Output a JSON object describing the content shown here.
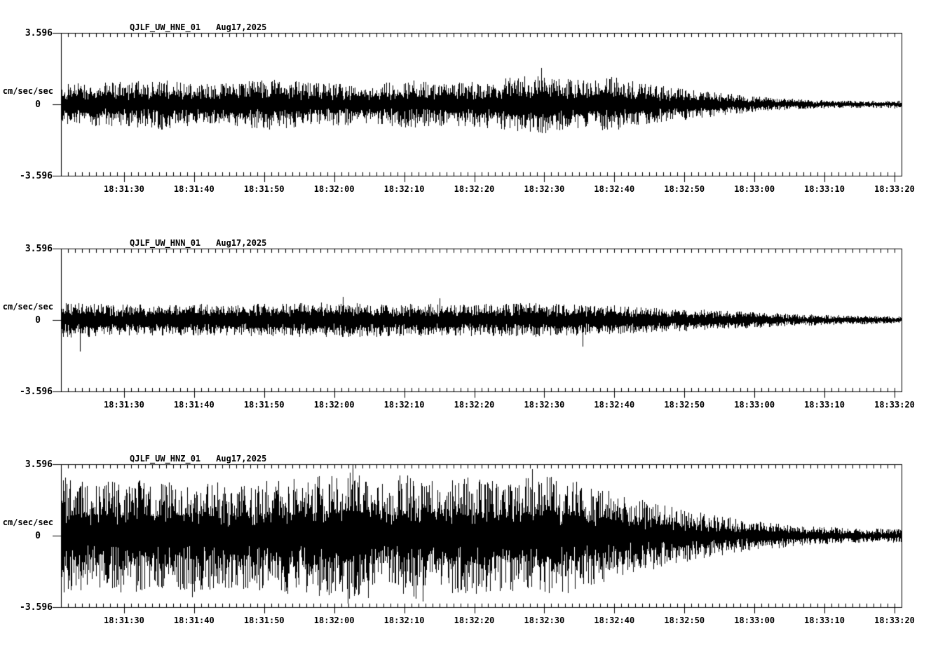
{
  "page": {
    "background": "#ffffff",
    "ink": "#000000"
  },
  "chart_data": [
    {
      "type": "line",
      "subtype": "seismogram",
      "station_label": "QJLF_UW_HNE_01",
      "date_label": "Aug17,2025",
      "ylabel": "cm/sec/sec",
      "y_tick_labels": {
        "top": "3.596",
        "zero": "0",
        "bottom": "-3.596"
      },
      "ylim": [
        -3.596,
        3.596
      ],
      "x_tick_labels": [
        "18:31:30",
        "18:31:40",
        "18:31:50",
        "18:32:00",
        "18:32:10",
        "18:32:20",
        "18:32:30",
        "18:32:40",
        "18:32:50",
        "18:33:00",
        "18:33:10",
        "18:33:20"
      ],
      "x_span_seconds": 120,
      "x_first_tick_offset_seconds": 9,
      "x_tick_interval_seconds": 10,
      "x_minor_tick_interval_seconds": 1,
      "grid": false,
      "legend": false,
      "seed": 101,
      "core_fraction": 0.38,
      "spike_probability": 0.85,
      "envelope": [
        [
          0,
          1.05
        ],
        [
          0.08,
          1.15
        ],
        [
          0.12,
          1.3
        ],
        [
          0.18,
          1.0
        ],
        [
          0.25,
          1.3
        ],
        [
          0.3,
          1.1
        ],
        [
          0.36,
          1.05
        ],
        [
          0.42,
          1.2
        ],
        [
          0.47,
          1.1
        ],
        [
          0.52,
          1.3
        ],
        [
          0.56,
          1.45
        ],
        [
          0.575,
          1.6
        ],
        [
          0.6,
          1.3
        ],
        [
          0.63,
          1.2
        ],
        [
          0.655,
          1.4
        ],
        [
          0.69,
          1.05
        ],
        [
          0.72,
          0.9
        ],
        [
          0.75,
          0.75
        ],
        [
          0.8,
          0.5
        ],
        [
          0.85,
          0.32
        ],
        [
          0.9,
          0.22
        ],
        [
          0.95,
          0.18
        ],
        [
          1,
          0.2
        ]
      ],
      "spikes": [
        [
          0.571,
          1.85
        ],
        [
          0.576,
          -1.45
        ]
      ]
    },
    {
      "type": "line",
      "subtype": "seismogram",
      "station_label": "QJLF_UW_HNN_01",
      "date_label": "Aug17,2025",
      "ylabel": "cm/sec/sec",
      "y_tick_labels": {
        "top": "3.596",
        "zero": "0",
        "bottom": "-3.596"
      },
      "ylim": [
        -3.596,
        3.596
      ],
      "x_tick_labels": [
        "18:31:30",
        "18:31:40",
        "18:31:50",
        "18:32:00",
        "18:32:10",
        "18:32:20",
        "18:32:30",
        "18:32:40",
        "18:32:50",
        "18:33:00",
        "18:33:10",
        "18:33:20"
      ],
      "x_span_seconds": 120,
      "x_first_tick_offset_seconds": 9,
      "x_tick_interval_seconds": 10,
      "x_minor_tick_interval_seconds": 1,
      "grid": false,
      "legend": false,
      "seed": 202,
      "core_fraction": 0.42,
      "spike_probability": 0.85,
      "envelope": [
        [
          0,
          0.9
        ],
        [
          0.05,
          0.82
        ],
        [
          0.1,
          0.78
        ],
        [
          0.2,
          0.82
        ],
        [
          0.3,
          0.88
        ],
        [
          0.4,
          0.82
        ],
        [
          0.5,
          0.8
        ],
        [
          0.55,
          0.85
        ],
        [
          0.6,
          0.8
        ],
        [
          0.65,
          0.75
        ],
        [
          0.7,
          0.65
        ],
        [
          0.75,
          0.55
        ],
        [
          0.8,
          0.45
        ],
        [
          0.85,
          0.35
        ],
        [
          0.9,
          0.28
        ],
        [
          0.95,
          0.22
        ],
        [
          1,
          0.18
        ]
      ],
      "spikes": [
        [
          0.022,
          -1.6
        ],
        [
          0.335,
          1.15
        ],
        [
          0.45,
          1.1
        ],
        [
          0.62,
          -1.35
        ]
      ]
    },
    {
      "type": "line",
      "subtype": "seismogram",
      "station_label": "QJLF_UW_HNZ_01",
      "date_label": "Aug17,2025",
      "ylabel": "cm/sec/sec",
      "y_tick_labels": {
        "top": "3.596",
        "zero": "0",
        "bottom": "-3.596"
      },
      "ylim": [
        -3.596,
        3.596
      ],
      "x_tick_labels": [
        "18:31:30",
        "18:31:40",
        "18:31:50",
        "18:32:00",
        "18:32:10",
        "18:32:20",
        "18:32:30",
        "18:32:40",
        "18:32:50",
        "18:33:00",
        "18:33:10",
        "18:33:20"
      ],
      "x_span_seconds": 120,
      "x_first_tick_offset_seconds": 9,
      "x_tick_interval_seconds": 10,
      "x_minor_tick_interval_seconds": 1,
      "grid": false,
      "legend": false,
      "seed": 303,
      "core_fraction": 0.35,
      "spike_probability": 0.88,
      "envelope": [
        [
          0,
          3.0
        ],
        [
          0.04,
          2.6
        ],
        [
          0.08,
          2.95
        ],
        [
          0.12,
          2.7
        ],
        [
          0.16,
          2.9
        ],
        [
          0.2,
          2.65
        ],
        [
          0.24,
          2.85
        ],
        [
          0.28,
          2.95
        ],
        [
          0.32,
          3.1
        ],
        [
          0.345,
          3.5
        ],
        [
          0.38,
          2.9
        ],
        [
          0.42,
          3.2
        ],
        [
          0.45,
          2.85
        ],
        [
          0.5,
          3.0
        ],
        [
          0.53,
          2.75
        ],
        [
          0.56,
          3.05
        ],
        [
          0.6,
          2.95
        ],
        [
          0.63,
          2.6
        ],
        [
          0.68,
          1.95
        ],
        [
          0.73,
          1.45
        ],
        [
          0.78,
          1.05
        ],
        [
          0.83,
          0.72
        ],
        [
          0.88,
          0.52
        ],
        [
          0.93,
          0.4
        ],
        [
          1,
          0.33
        ]
      ],
      "spikes": [
        [
          0.155,
          -3.1
        ],
        [
          0.346,
          3.55
        ],
        [
          0.43,
          -3.3
        ],
        [
          0.56,
          3.35
        ]
      ]
    }
  ]
}
